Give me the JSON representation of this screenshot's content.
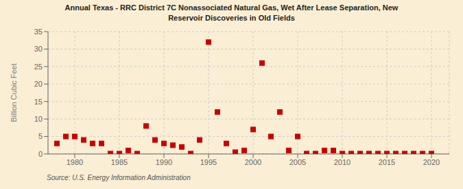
{
  "chart_data": {
    "type": "scatter",
    "title": "Annual Texas - RRC District 7C Nonassociated Natural Gas, Wet After Lease Separation, New\nReservoir Discoveries in Old Fields",
    "y_label": "Billion Cubic Feet",
    "annotations": [
      "Source: U.S. Energy Information Administration"
    ],
    "color": "#cc0000",
    "marker": "square",
    "grid": true,
    "xlim": [
      1977,
      2022
    ],
    "ylim": [
      0,
      35
    ],
    "xticks": [
      1980,
      1985,
      1990,
      1995,
      2000,
      2005,
      2010,
      2015,
      2020
    ],
    "yticks": [
      0,
      5,
      10,
      15,
      20,
      25,
      30,
      35
    ],
    "x": [
      1978,
      1979,
      1980,
      1981,
      1982,
      1983,
      1984,
      1985,
      1986,
      1987,
      1988,
      1989,
      1990,
      1991,
      1992,
      1993,
      1994,
      1995,
      1996,
      1997,
      1998,
      1999,
      2000,
      2001,
      2002,
      2003,
      2004,
      2005,
      2006,
      2007,
      2008,
      2009,
      2010,
      2011,
      2012,
      2013,
      2014,
      2015,
      2016,
      2017,
      2018,
      2019,
      2020
    ],
    "values": [
      3.0,
      5.0,
      5.0,
      4.0,
      3.0,
      3.0,
      0.1,
      0.1,
      1.0,
      0.1,
      8.0,
      4.0,
      3.0,
      2.5,
      2.0,
      0.1,
      4.0,
      32.0,
      12.0,
      3.0,
      0.5,
      1.0,
      7.0,
      26.0,
      5.0,
      12.0,
      1.0,
      5.0,
      0.1,
      0.1,
      1.0,
      1.0,
      0.1,
      0.1,
      0.1,
      0.1,
      0.1,
      0.1,
      0.1,
      0.1,
      0.1,
      0.1,
      0.1
    ]
  }
}
